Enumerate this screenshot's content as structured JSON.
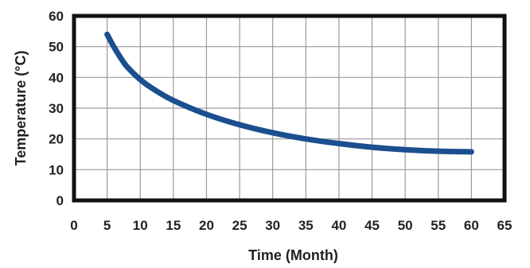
{
  "chart_data": {
    "type": "line",
    "title": "",
    "xlabel": "Time (Month)",
    "ylabel": "Temperature (°C)",
    "xlim": [
      0,
      65
    ],
    "ylim": [
      0,
      60
    ],
    "x_ticks": [
      0,
      5,
      10,
      15,
      20,
      25,
      30,
      35,
      40,
      45,
      50,
      55,
      60,
      65
    ],
    "y_ticks": [
      0,
      10,
      20,
      30,
      40,
      50,
      60
    ],
    "grid": true,
    "colors": {
      "line": "#1b4f8f",
      "frame": "#111111",
      "grid": "#9a9a9a"
    },
    "series": [
      {
        "x": [
          5,
          6,
          7,
          8,
          10,
          12,
          15,
          20,
          25,
          30,
          35,
          40,
          45,
          50,
          55,
          60
        ],
        "y": [
          54,
          50,
          46.5,
          43.5,
          39.3,
          36.2,
          32.5,
          28,
          24.6,
          22,
          20,
          18.5,
          17.3,
          16.5,
          16,
          15.8
        ]
      }
    ]
  }
}
